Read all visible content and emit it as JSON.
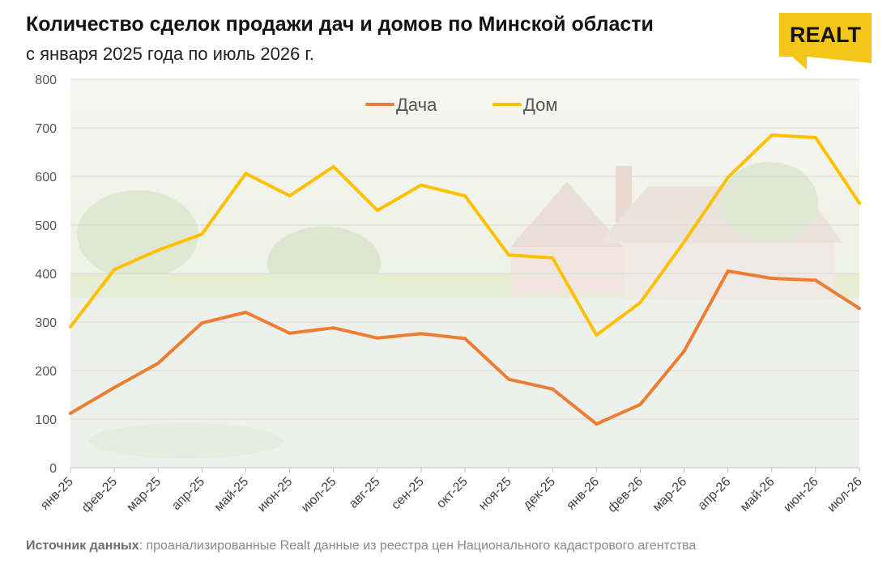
{
  "header": {
    "title": "Количество сделок продажи дач и домов по Минской области",
    "subtitle": "с января 2025 года по июль 2026 г."
  },
  "logo": {
    "text": "REALT",
    "color": "#f5c518"
  },
  "source": {
    "label": "Источник данных",
    "text": ": проанализированные Realt данные из реестра цен Национального кадастрового агентства"
  },
  "chart_data": {
    "type": "line",
    "categories": [
      "янв-25",
      "фев-25",
      "мар-25",
      "апр-25",
      "май-25",
      "июн-25",
      "июл-25",
      "авг-25",
      "сен-25",
      "окт-25",
      "ноя-25",
      "дек-25",
      "янв-26",
      "фев-26",
      "мар-26",
      "апр-26",
      "май-26",
      "июн-26",
      "июл-26"
    ],
    "series": [
      {
        "name": "Дача",
        "color": "#ed7d31",
        "values": [
          112,
          165,
          215,
          298,
          320,
          277,
          288,
          267,
          276,
          266,
          182,
          162,
          90,
          130,
          240,
          405,
          390,
          386,
          328
        ]
      },
      {
        "name": "Дом",
        "color": "#ffc000",
        "values": [
          290,
          408,
          448,
          481,
          606,
          560,
          620,
          530,
          582,
          560,
          438,
          432,
          273,
          340,
          465,
          598,
          685,
          680,
          545
        ]
      }
    ],
    "ylim": [
      0,
      800
    ],
    "yticks": [
      0,
      100,
      200,
      300,
      400,
      500,
      600,
      700,
      800
    ],
    "grid": true,
    "legend": "top-center"
  }
}
